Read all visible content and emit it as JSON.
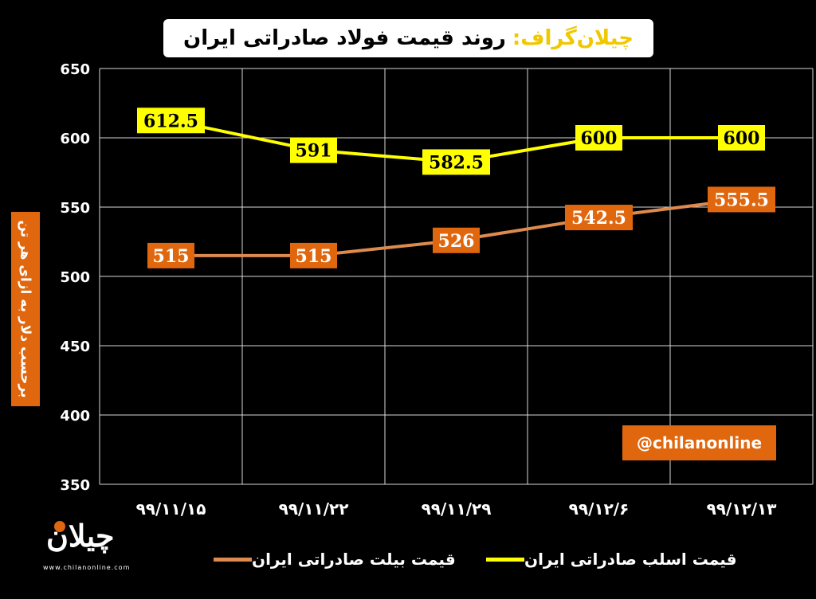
{
  "header": {
    "brand": "چیلان‌گراف:",
    "title": "روند قیمت فولاد صادراتی ایران"
  },
  "watermark": "@chilanonline",
  "logo": {
    "name": "چیلان",
    "url": "www.chilanonline.com"
  },
  "colors": {
    "background": "#000000",
    "yellow_series": "#ffff00",
    "orange_series": "#e0670e",
    "billet_line": "#dd8a4f"
  },
  "chart_data": {
    "type": "line",
    "title": "روند قیمت فولاد صادراتی ایران",
    "ylabel": "برحسب دلار به ازای هر تن",
    "xlabel": "",
    "categories": [
      "۹۹/۱۱/۱۵",
      "۹۹/۱۱/۲۲",
      "۹۹/۱۱/۲۹",
      "۹۹/۱۲/۶",
      "۹۹/۱۲/۱۳"
    ],
    "ylim": [
      350,
      650
    ],
    "yticks": [
      350,
      400,
      450,
      500,
      550,
      600,
      650
    ],
    "grid": true,
    "legend_position": "bottom",
    "series": [
      {
        "name": "قیمت اسلب صادراتی ایران",
        "values": [
          612.5,
          591,
          582.5,
          600,
          600
        ],
        "labels": [
          "612.5",
          "591",
          "582.5",
          "600",
          "600"
        ]
      },
      {
        "name": "قیمت بیلت صادراتی ایران",
        "values": [
          515,
          515,
          526,
          542.5,
          555.5
        ],
        "labels": [
          "515",
          "515",
          "526",
          "542.5",
          "555.5"
        ]
      }
    ]
  }
}
